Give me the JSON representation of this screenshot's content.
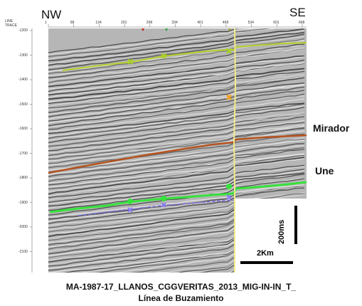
{
  "header": {
    "left_direction": "NW",
    "right_direction": "SE",
    "axis_label_line1": "LINE",
    "axis_label_line2": "TRACE",
    "trace_ticks": [
      "1",
      "68",
      "134",
      "201",
      "268",
      "334",
      "401",
      "468",
      "534",
      "601",
      "668"
    ]
  },
  "time_axis": {
    "ticks": [
      "-1200",
      "-1300",
      "-1400",
      "-1500",
      "-1600",
      "-1700",
      "-1800",
      "-1900",
      "-2000",
      "-2100"
    ]
  },
  "horizons": {
    "mirador": "Mirador",
    "une": "Une"
  },
  "scale_bar": {
    "vertical": "200ms",
    "horizontal": "2Km"
  },
  "caption": {
    "line1": "MA-1987-17_LLANOS_CGGVERITAS_2013_MIG-IN-IN_T_",
    "line2": "Línea de Buzamiento"
  },
  "colors": {
    "horizon_top": "#b5cf2a",
    "horizon_mirador": "#b5521e",
    "horizon_lower": "#36e23c",
    "horizon_lower2": "#7a6ee0",
    "fault": "#f2ec8a",
    "marker_orange": "#f0a020"
  }
}
